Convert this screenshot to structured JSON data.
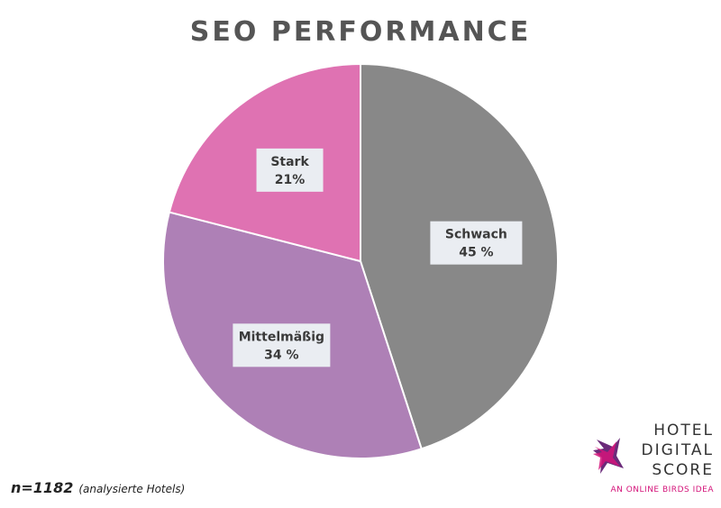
{
  "chart_data": {
    "type": "pie",
    "title": "SEO PERFORMANCE",
    "slices": [
      {
        "label": "Schwach",
        "value_label": "45 %",
        "value": 45,
        "color": "#888888"
      },
      {
        "label": "Mittelmäßig",
        "value_label": "34 %",
        "value": 34,
        "color": "#ae80b6"
      },
      {
        "label": "Stark",
        "value_label": "21%",
        "value": 21,
        "color": "#df72b2"
      }
    ],
    "start": "12 o'clock",
    "direction": "clockwise",
    "label_box_color": "#eaedf2"
  },
  "footnote": {
    "n": "n=1182",
    "description": "(analysierte Hotels)"
  },
  "logo": {
    "line1": "HOTEL",
    "line2": "DIGITAL",
    "line3": "SCORE",
    "tagline": "AN ONLINE BIRDS IDEA",
    "accent_colors": [
      "#d4147a",
      "#6b2b7a",
      "#9b3c8c"
    ]
  }
}
